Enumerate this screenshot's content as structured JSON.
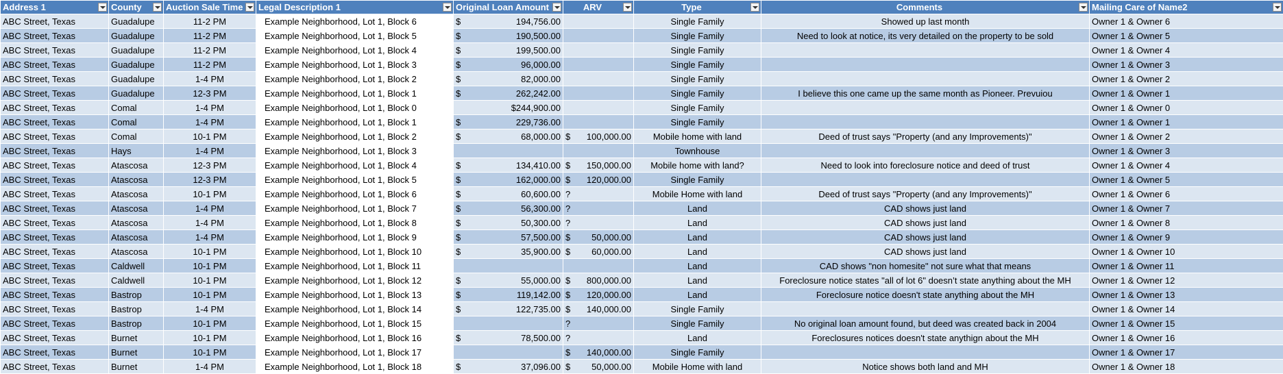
{
  "table": {
    "headers": [
      "Address 1",
      "County",
      "Auction Sale Time",
      "Legal Description 1",
      "Original Loan Amount",
      "ARV",
      "Type",
      "Comments",
      "Mailing Care of Name2"
    ],
    "rows": [
      [
        "ABC Street, Texas",
        "Guadalupe",
        "11-2 PM",
        "Example Neighborhood, Lot 1, Block 6",
        {
          "symbol": "$",
          "amount": "194,756.00"
        },
        null,
        "Single Family",
        "Showed up last month",
        "Owner 1 & Owner 6"
      ],
      [
        "ABC Street, Texas",
        "Guadalupe",
        "11-2 PM",
        "Example Neighborhood, Lot 1, Block 5",
        {
          "symbol": "$",
          "amount": "190,500.00"
        },
        null,
        "Single Family",
        "Need to look at notice, its very detailed on the property to be sold",
        "Owner 1 & Owner 5"
      ],
      [
        "ABC Street, Texas",
        "Guadalupe",
        "11-2 PM",
        "Example Neighborhood, Lot 1, Block 4",
        {
          "symbol": "$",
          "amount": "199,500.00"
        },
        null,
        "Single Family",
        null,
        "Owner 1 & Owner 4"
      ],
      [
        "ABC Street, Texas",
        "Guadalupe",
        "11-2 PM",
        "Example Neighborhood, Lot 1, Block 3",
        {
          "symbol": "$",
          "amount": "96,000.00"
        },
        null,
        "Single Family",
        null,
        "Owner 1 & Owner 3"
      ],
      [
        "ABC Street, Texas",
        "Guadalupe",
        "1-4 PM",
        "Example Neighborhood, Lot 1, Block 2",
        {
          "symbol": "$",
          "amount": "82,000.00"
        },
        null,
        "Single Family",
        null,
        "Owner 1 & Owner 2"
      ],
      [
        "ABC Street, Texas",
        "Guadalupe",
        "12-3 PM",
        "Example Neighborhood, Lot 1, Block 1",
        {
          "symbol": "$",
          "amount": "262,242.00"
        },
        null,
        "Single Family",
        "I believe this one came up the same month as Pioneer. Prevuiou",
        "Owner 1 & Owner 1"
      ],
      [
        "ABC Street, Texas",
        "Comal",
        "1-4 PM",
        "Example Neighborhood, Lot 1, Block 0",
        "$244,900.00",
        null,
        "Single Family",
        null,
        "Owner 1 & Owner 0"
      ],
      [
        "ABC Street, Texas",
        "Comal",
        "1-4 PM",
        "Example Neighborhood, Lot 1, Block 1",
        {
          "symbol": "$",
          "amount": "229,736.00"
        },
        null,
        "Single Family",
        null,
        "Owner 1 & Owner 1"
      ],
      [
        "ABC Street, Texas",
        "Comal",
        "10-1 PM",
        "Example Neighborhood, Lot 1, Block 2",
        {
          "symbol": "$",
          "amount": "68,000.00"
        },
        {
          "symbol": "$",
          "amount": "100,000.00"
        },
        "Mobile home with land",
        "Deed of trust says \"Property (and any Improvements)\"",
        "Owner 1 & Owner 2"
      ],
      [
        "ABC Street, Texas",
        "Hays",
        "1-4 PM",
        "Example Neighborhood, Lot 1, Block 3",
        null,
        null,
        "Townhouse",
        null,
        "Owner 1 & Owner 3"
      ],
      [
        "ABC Street, Texas",
        "Atascosa",
        "12-3 PM",
        "Example Neighborhood, Lot 1, Block 4",
        {
          "symbol": "$",
          "amount": "134,410.00"
        },
        {
          "symbol": "$",
          "amount": "150,000.00"
        },
        "Mobile home with land?",
        "Need to look into foreclosure notice and deed of trust",
        "Owner 1 & Owner 4"
      ],
      [
        "ABC Street, Texas",
        "Atascosa",
        "12-3 PM",
        "Example Neighborhood, Lot 1, Block 5",
        {
          "symbol": "$",
          "amount": "162,000.00"
        },
        {
          "symbol": "$",
          "amount": "120,000.00"
        },
        "Single Family",
        null,
        "Owner 1 & Owner 5"
      ],
      [
        "ABC Street, Texas",
        "Atascosa",
        "10-1 PM",
        "Example Neighborhood, Lot 1, Block 6",
        {
          "symbol": "$",
          "amount": "60,600.00"
        },
        "?",
        "Mobile Home with land",
        "Deed of trust says \"Property (and any Improvements)\"",
        "Owner 1 & Owner 6"
      ],
      [
        "ABC Street, Texas",
        "Atascosa",
        "1-4 PM",
        "Example Neighborhood, Lot 1, Block 7",
        {
          "symbol": "$",
          "amount": "56,300.00"
        },
        "?",
        "Land",
        "CAD shows just land",
        "Owner 1 & Owner 7"
      ],
      [
        "ABC Street, Texas",
        "Atascosa",
        "1-4 PM",
        "Example Neighborhood, Lot 1, Block 8",
        {
          "symbol": "$",
          "amount": "50,300.00"
        },
        "?",
        "Land",
        "CAD shows just land",
        "Owner 1 & Owner 8"
      ],
      [
        "ABC Street, Texas",
        "Atascosa",
        "1-4 PM",
        "Example Neighborhood, Lot 1, Block 9",
        {
          "symbol": "$",
          "amount": "57,500.00"
        },
        {
          "symbol": "$",
          "amount": "50,000.00"
        },
        "Land",
        "CAD shows just land",
        "Owner 1 & Owner 9"
      ],
      [
        "ABC Street, Texas",
        "Atascosa",
        "10-1 PM",
        "Example Neighborhood, Lot 1, Block 10",
        {
          "symbol": "$",
          "amount": "35,900.00"
        },
        {
          "symbol": "$",
          "amount": "60,000.00"
        },
        "Land",
        "CAD shows just land",
        "Owner 1 & Owner 10"
      ],
      [
        "ABC Street, Texas",
        "Caldwell",
        "10-1 PM",
        "Example Neighborhood, Lot 1, Block 11",
        null,
        null,
        "Land",
        "CAD shows \"non homesite\" not sure what that means",
        "Owner 1 & Owner 11"
      ],
      [
        "ABC Street, Texas",
        "Caldwell",
        "10-1 PM",
        "Example Neighborhood, Lot 1, Block 12",
        {
          "symbol": "$",
          "amount": "55,000.00"
        },
        {
          "symbol": "$",
          "amount": "800,000.00"
        },
        "Land",
        "Foreclosure notice states \"all of lot 6\" doesn’t state anything about the MH",
        "Owner 1 & Owner 12"
      ],
      [
        "ABC Street, Texas",
        "Bastrop",
        "10-1 PM",
        "Example Neighborhood, Lot 1, Block 13",
        {
          "symbol": "$",
          "amount": "119,142.00"
        },
        {
          "symbol": "$",
          "amount": "120,000.00"
        },
        "Land",
        "Foreclosure notice doesn't state anything about the MH",
        "Owner 1 & Owner 13"
      ],
      [
        "ABC Street, Texas",
        "Bastrop",
        "1-4 PM",
        "Example Neighborhood, Lot 1, Block 14",
        {
          "symbol": "$",
          "amount": "122,735.00"
        },
        {
          "symbol": "$",
          "amount": "140,000.00"
        },
        "Single Family",
        null,
        "Owner 1 & Owner 14"
      ],
      [
        "ABC Street, Texas",
        "Bastrop",
        "10-1 PM",
        "Example Neighborhood, Lot 1, Block 15",
        null,
        "?",
        "Single Family",
        "No original loan amount found, but deed was created back in 2004",
        "Owner 1 & Owner 15"
      ],
      [
        "ABC Street, Texas",
        "Burnet",
        "10-1 PM",
        "Example Neighborhood, Lot 1, Block 16",
        {
          "symbol": "$",
          "amount": "78,500.00"
        },
        "?",
        "Land",
        "Foreclosures notices doesn't state anythign about the MH",
        "Owner 1 & Owner 16"
      ],
      [
        "ABC Street, Texas",
        "Burnet",
        "10-1 PM",
        "Example Neighborhood, Lot 1, Block 17",
        null,
        {
          "symbol": "$",
          "amount": "140,000.00"
        },
        "Single Family",
        null,
        "Owner 1 & Owner 17"
      ],
      [
        "ABC Street, Texas",
        "Burnet",
        "1-4 PM",
        "Example Neighborhood, Lot 1, Block 18",
        {
          "symbol": "$",
          "amount": "37,096.00"
        },
        {
          "symbol": "$",
          "amount": "50,000.00"
        },
        "Mobile Home with land",
        "Notice shows both land and MH",
        "Owner 1 & Owner 18"
      ]
    ]
  }
}
